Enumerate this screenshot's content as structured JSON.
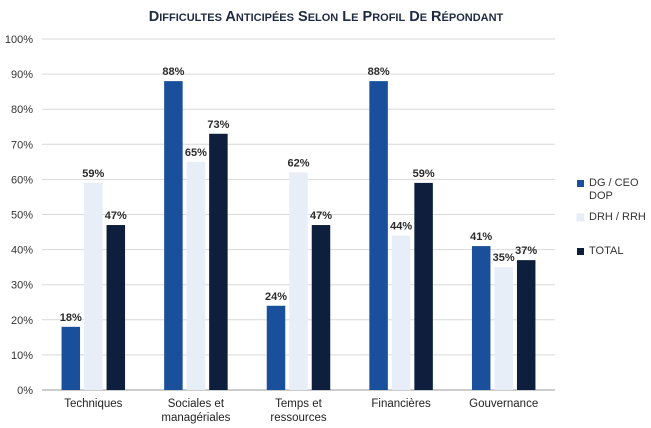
{
  "chart_data": {
    "type": "bar",
    "title": "Difficultes anticipées selon le profil de répondant",
    "categories": [
      [
        "Techniques"
      ],
      [
        "Sociales et",
        "managériales"
      ],
      [
        "Temps et",
        "ressources"
      ],
      [
        "Financières"
      ],
      [
        "Gouvernance"
      ]
    ],
    "series": [
      {
        "name": [
          "DG / CEO",
          "DOP"
        ],
        "color": "#1a4f9c",
        "values": [
          18,
          88,
          24,
          88,
          41
        ]
      },
      {
        "name": [
          "DRH / RRH"
        ],
        "color": "#e8eef8",
        "values": [
          59,
          65,
          62,
          44,
          35
        ]
      },
      {
        "name": [
          "TOTAL"
        ],
        "color": "#0d1f3c",
        "values": [
          47,
          73,
          47,
          59,
          37
        ]
      }
    ],
    "ylim": [
      0,
      100
    ],
    "yticks": [
      "0%",
      "10%",
      "20%",
      "30%",
      "40%",
      "50%",
      "60%",
      "70%",
      "80%",
      "90%",
      "100%"
    ],
    "value_suffix": "%",
    "grid": true,
    "legend": "right"
  }
}
